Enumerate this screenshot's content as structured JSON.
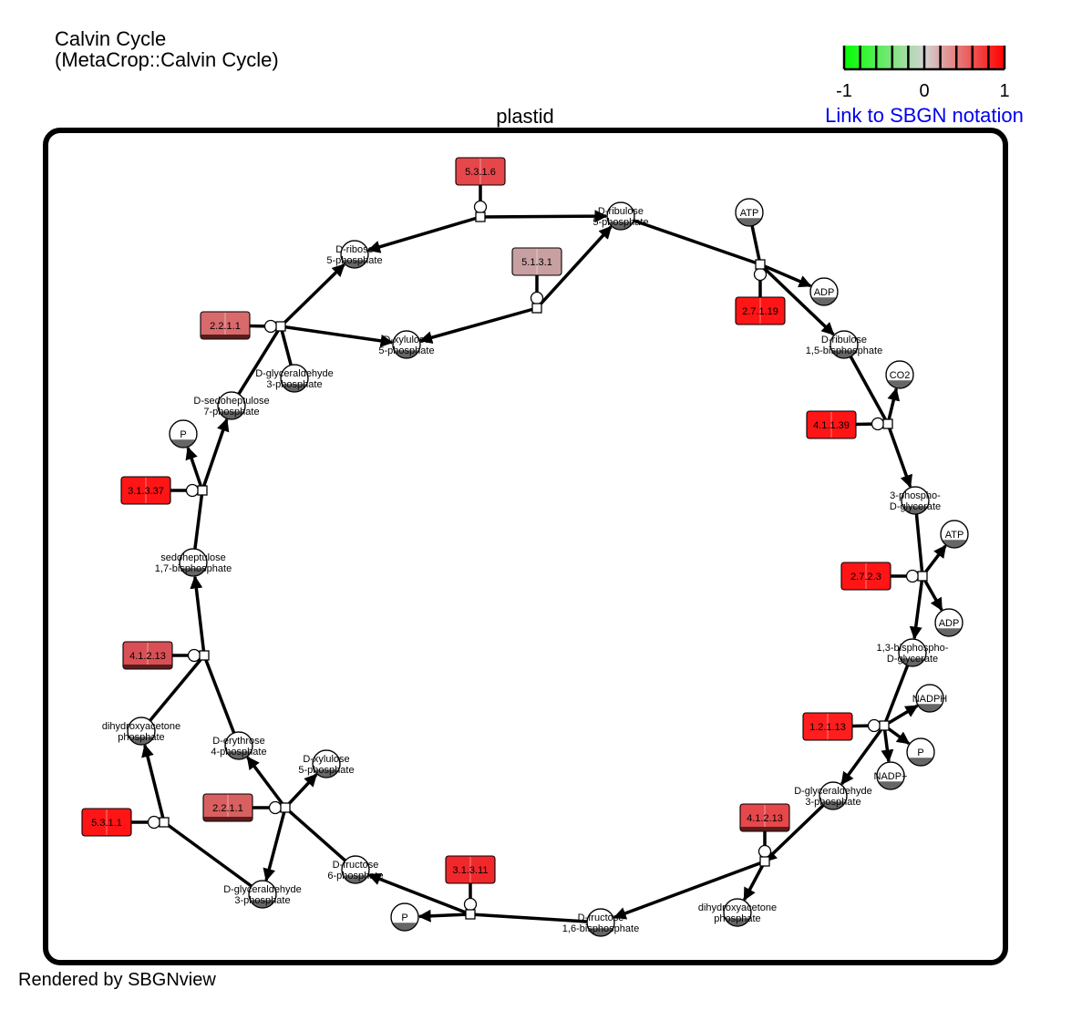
{
  "title": {
    "line1": "Calvin Cycle",
    "line2": "(MetaCrop::Calvin Cycle)"
  },
  "legend": {
    "link_label": "Link to SBGN notation",
    "min_label": "-1",
    "mid_label": "0",
    "max_label": "1",
    "low_color": "#00ff00",
    "mid_color": "#d3d3d3",
    "high_color": "#ff0000"
  },
  "compartment": {
    "label": "plastid"
  },
  "footer": "Rendered by SBGNview",
  "metabolites": [
    {
      "id": "ru5p",
      "lines": [
        "D-ribulose",
        "5-phosphate"
      ]
    },
    {
      "id": "atp1",
      "lines": [
        "ATP"
      ]
    },
    {
      "id": "adp1",
      "lines": [
        "ADP"
      ]
    },
    {
      "id": "rubp",
      "lines": [
        "D-ribulose",
        "1,5-bisphosphate"
      ]
    },
    {
      "id": "co2",
      "lines": [
        "CO2"
      ]
    },
    {
      "id": "pga",
      "lines": [
        "3-phospho-",
        "D-glycerate"
      ]
    },
    {
      "id": "atp2",
      "lines": [
        "ATP"
      ]
    },
    {
      "id": "adp2",
      "lines": [
        "ADP"
      ]
    },
    {
      "id": "bpg",
      "lines": [
        "1,3-bisphospho-",
        "D-glycerate"
      ]
    },
    {
      "id": "nadph",
      "lines": [
        "NADPH"
      ]
    },
    {
      "id": "p1",
      "lines": [
        "P"
      ]
    },
    {
      "id": "nadp",
      "lines": [
        "NADP+"
      ]
    },
    {
      "id": "g3p1",
      "lines": [
        "D-glyceraldehyde",
        "3-phosphate"
      ]
    },
    {
      "id": "dhap1",
      "lines": [
        "dihydroxyacetone",
        "phosphate"
      ]
    },
    {
      "id": "fbp",
      "lines": [
        "D-fructose",
        "1,6-bisphosphate"
      ]
    },
    {
      "id": "p2",
      "lines": [
        "P"
      ]
    },
    {
      "id": "f6p",
      "lines": [
        "D-fructose",
        "6-phosphate"
      ]
    },
    {
      "id": "g3p2",
      "lines": [
        "D-glyceraldehyde",
        "3-phosphate"
      ]
    },
    {
      "id": "xu5p1",
      "lines": [
        "D-xylulose",
        "5-phosphate"
      ]
    },
    {
      "id": "e4p",
      "lines": [
        "D-erythrose",
        "4-phosphate"
      ]
    },
    {
      "id": "dhap2",
      "lines": [
        "dihydroxyacetone",
        "phosphate"
      ]
    },
    {
      "id": "sbp",
      "lines": [
        "sedoheptulose",
        "1,7-bisphosphate"
      ]
    },
    {
      "id": "p3",
      "lines": [
        "P"
      ]
    },
    {
      "id": "s7p",
      "lines": [
        "D-sedoheptulose",
        "7-phosphate"
      ]
    },
    {
      "id": "g3p3",
      "lines": [
        "D-glyceraldehyde",
        "3-phosphate"
      ]
    },
    {
      "id": "r5p",
      "lines": [
        "D-ribose",
        "5-phosphate"
      ]
    },
    {
      "id": "xu5p2",
      "lines": [
        "D-xylulose",
        "5-phosphate"
      ]
    }
  ],
  "enzymes": [
    {
      "id": "e_5316",
      "label": "5.3.1.6",
      "color": "#e5474b",
      "shade": false
    },
    {
      "id": "e_5131",
      "label": "5.1.3.1",
      "color": "#c9a0a1",
      "shade": false
    },
    {
      "id": "e_27119",
      "label": "2.7.1.19",
      "color": "#ff1515",
      "shade": false
    },
    {
      "id": "e_411392",
      "label": "4.1.1.39",
      "color": "#ff1515",
      "shade": false
    },
    {
      "id": "e_2723",
      "label": "2.7.2.3",
      "color": "#ff1515",
      "shade": false
    },
    {
      "id": "e_12113",
      "label": "1.2.1.13",
      "color": "#ff1e1e",
      "shade": false
    },
    {
      "id": "e_41213a",
      "label": "4.1.2.13",
      "color": "#e5474b",
      "shade": true
    },
    {
      "id": "e_31311",
      "label": "3.1.3.11",
      "color": "#f0282c",
      "shade": false
    },
    {
      "id": "e_2211a",
      "label": "2.2.1.1",
      "color": "#d86060",
      "shade": true
    },
    {
      "id": "e_5311",
      "label": "5.3.1.1",
      "color": "#ff1515",
      "shade": false
    },
    {
      "id": "e_41213b",
      "label": "4.1.2.13",
      "color": "#d85055",
      "shade": true
    },
    {
      "id": "e_31337",
      "label": "3.1.3.37",
      "color": "#ff1515",
      "shade": false
    },
    {
      "id": "e_2211b",
      "label": "2.2.1.1",
      "color": "#d86a6c",
      "shade": true
    }
  ]
}
